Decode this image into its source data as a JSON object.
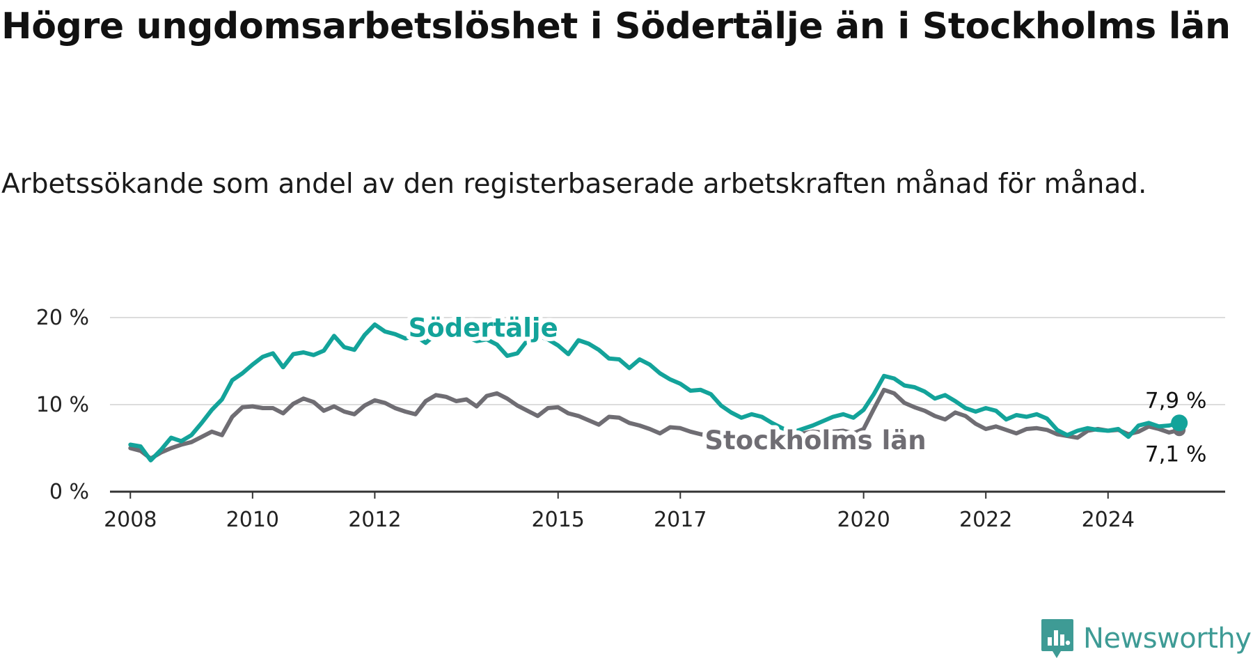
{
  "title": "Högre ungdomsarbetslöshet i Södertälje än i Stockholms län",
  "subtitle": "Arbetssökande som andel av den registerbaserade arbetskraften månad för månad.",
  "colors": {
    "sodertalje": "#13a39a",
    "stockholm": "#6f6d73",
    "grid": "#dcdcdc",
    "axis": "#333333",
    "brand": "#3e9b95"
  },
  "brand": {
    "name": "Newsworthy",
    "icon": "newsworthy-logo-icon"
  },
  "chart_data": {
    "type": "line",
    "title": "Högre ungdomsarbetslöshet i Södertälje än i Stockholms län",
    "xlabel": "",
    "ylabel": "",
    "x_ticks": [
      "2008",
      "2010",
      "2012",
      "2015",
      "2017",
      "2020",
      "2022",
      "2024"
    ],
    "y_ticks": [
      "0 %",
      "10 %",
      "20 %"
    ],
    "ylim": [
      0,
      20
    ],
    "xlim": [
      "2007-09",
      "2025-12"
    ],
    "grid": "horizontal",
    "legend": "inline labels",
    "series": [
      {
        "name": "Södertälje",
        "end_label": "7,9 %",
        "points": [
          [
            "2008-01",
            5.4
          ],
          [
            "2008-03",
            5.2
          ],
          [
            "2008-05",
            3.6
          ],
          [
            "2008-07",
            4.8
          ],
          [
            "2008-09",
            6.2
          ],
          [
            "2008-11",
            5.8
          ],
          [
            "2009-01",
            6.5
          ],
          [
            "2009-03",
            7.9
          ],
          [
            "2009-05",
            9.4
          ],
          [
            "2009-07",
            10.6
          ],
          [
            "2009-09",
            12.8
          ],
          [
            "2009-11",
            13.6
          ],
          [
            "2010-01",
            14.6
          ],
          [
            "2010-03",
            15.5
          ],
          [
            "2010-05",
            15.9
          ],
          [
            "2010-07",
            14.3
          ],
          [
            "2010-09",
            15.8
          ],
          [
            "2010-11",
            16.0
          ],
          [
            "2011-01",
            15.7
          ],
          [
            "2011-03",
            16.2
          ],
          [
            "2011-05",
            17.9
          ],
          [
            "2011-07",
            16.6
          ],
          [
            "2011-09",
            16.3
          ],
          [
            "2011-11",
            18.0
          ],
          [
            "2012-01",
            19.2
          ],
          [
            "2012-03",
            18.4
          ],
          [
            "2012-05",
            18.1
          ],
          [
            "2012-07",
            17.6
          ],
          [
            "2012-09",
            17.9
          ],
          [
            "2012-11",
            17.1
          ],
          [
            "2013-01",
            18.1
          ],
          [
            "2013-03",
            18.4
          ],
          [
            "2013-05",
            18.2
          ],
          [
            "2013-07",
            17.8
          ],
          [
            "2013-09",
            17.3
          ],
          [
            "2013-11",
            17.5
          ],
          [
            "2014-01",
            16.9
          ],
          [
            "2014-03",
            15.6
          ],
          [
            "2014-05",
            15.9
          ],
          [
            "2014-07",
            17.4
          ],
          [
            "2014-09",
            17.9
          ],
          [
            "2014-11",
            17.5
          ],
          [
            "2015-01",
            16.8
          ],
          [
            "2015-03",
            15.8
          ],
          [
            "2015-05",
            17.4
          ],
          [
            "2015-07",
            17.0
          ],
          [
            "2015-09",
            16.3
          ],
          [
            "2015-11",
            15.3
          ],
          [
            "2016-01",
            15.2
          ],
          [
            "2016-03",
            14.2
          ],
          [
            "2016-05",
            15.2
          ],
          [
            "2016-07",
            14.6
          ],
          [
            "2016-09",
            13.6
          ],
          [
            "2016-11",
            12.9
          ],
          [
            "2017-01",
            12.4
          ],
          [
            "2017-03",
            11.6
          ],
          [
            "2017-05",
            11.7
          ],
          [
            "2017-07",
            11.2
          ],
          [
            "2017-09",
            9.9
          ],
          [
            "2017-11",
            9.1
          ],
          [
            "2018-01",
            8.5
          ],
          [
            "2018-03",
            8.9
          ],
          [
            "2018-05",
            8.6
          ],
          [
            "2018-07",
            7.9
          ],
          [
            "2018-09",
            7.3
          ],
          [
            "2018-11",
            6.8
          ],
          [
            "2019-01",
            7.2
          ],
          [
            "2019-03",
            7.6
          ],
          [
            "2019-05",
            8.1
          ],
          [
            "2019-07",
            8.6
          ],
          [
            "2019-09",
            8.9
          ],
          [
            "2019-11",
            8.5
          ],
          [
            "2020-01",
            9.4
          ],
          [
            "2020-03",
            11.2
          ],
          [
            "2020-05",
            13.3
          ],
          [
            "2020-07",
            13.0
          ],
          [
            "2020-09",
            12.2
          ],
          [
            "2020-11",
            12.0
          ],
          [
            "2021-01",
            11.5
          ],
          [
            "2021-03",
            10.7
          ],
          [
            "2021-05",
            11.1
          ],
          [
            "2021-07",
            10.4
          ],
          [
            "2021-09",
            9.6
          ],
          [
            "2021-11",
            9.2
          ],
          [
            "2022-01",
            9.6
          ],
          [
            "2022-03",
            9.3
          ],
          [
            "2022-05",
            8.3
          ],
          [
            "2022-07",
            8.8
          ],
          [
            "2022-09",
            8.6
          ],
          [
            "2022-11",
            8.9
          ],
          [
            "2023-01",
            8.4
          ],
          [
            "2023-03",
            7.1
          ],
          [
            "2023-05",
            6.5
          ],
          [
            "2023-07",
            7.0
          ],
          [
            "2023-09",
            7.3
          ],
          [
            "2023-11",
            7.1
          ],
          [
            "2024-01",
            7.0
          ],
          [
            "2024-03",
            7.2
          ],
          [
            "2024-05",
            6.3
          ],
          [
            "2024-07",
            7.6
          ],
          [
            "2024-09",
            7.9
          ],
          [
            "2024-11",
            7.5
          ],
          [
            "2025-01",
            7.6
          ],
          [
            "2025-03",
            7.9
          ]
        ]
      },
      {
        "name": "Stockholms län",
        "end_label": "7,1 %",
        "points": [
          [
            "2008-01",
            5.0
          ],
          [
            "2008-03",
            4.7
          ],
          [
            "2008-05",
            3.8
          ],
          [
            "2008-07",
            4.5
          ],
          [
            "2008-09",
            5.0
          ],
          [
            "2008-11",
            5.4
          ],
          [
            "2009-01",
            5.7
          ],
          [
            "2009-03",
            6.3
          ],
          [
            "2009-05",
            6.9
          ],
          [
            "2009-07",
            6.5
          ],
          [
            "2009-09",
            8.6
          ],
          [
            "2009-11",
            9.7
          ],
          [
            "2010-01",
            9.8
          ],
          [
            "2010-03",
            9.6
          ],
          [
            "2010-05",
            9.6
          ],
          [
            "2010-07",
            9.0
          ],
          [
            "2010-09",
            10.1
          ],
          [
            "2010-11",
            10.7
          ],
          [
            "2011-01",
            10.3
          ],
          [
            "2011-03",
            9.3
          ],
          [
            "2011-05",
            9.8
          ],
          [
            "2011-07",
            9.2
          ],
          [
            "2011-09",
            8.9
          ],
          [
            "2011-11",
            9.9
          ],
          [
            "2012-01",
            10.5
          ],
          [
            "2012-03",
            10.2
          ],
          [
            "2012-05",
            9.6
          ],
          [
            "2012-07",
            9.2
          ],
          [
            "2012-09",
            8.9
          ],
          [
            "2012-11",
            10.4
          ],
          [
            "2013-01",
            11.1
          ],
          [
            "2013-03",
            10.9
          ],
          [
            "2013-05",
            10.4
          ],
          [
            "2013-07",
            10.6
          ],
          [
            "2013-09",
            9.8
          ],
          [
            "2013-11",
            11.0
          ],
          [
            "2014-01",
            11.3
          ],
          [
            "2014-03",
            10.7
          ],
          [
            "2014-05",
            9.9
          ],
          [
            "2014-07",
            9.3
          ],
          [
            "2014-09",
            8.7
          ],
          [
            "2014-11",
            9.6
          ],
          [
            "2015-01",
            9.7
          ],
          [
            "2015-03",
            9.0
          ],
          [
            "2015-05",
            8.7
          ],
          [
            "2015-07",
            8.2
          ],
          [
            "2015-09",
            7.7
          ],
          [
            "2015-11",
            8.6
          ],
          [
            "2016-01",
            8.5
          ],
          [
            "2016-03",
            7.9
          ],
          [
            "2016-05",
            7.6
          ],
          [
            "2016-07",
            7.2
          ],
          [
            "2016-09",
            6.7
          ],
          [
            "2016-11",
            7.4
          ],
          [
            "2017-01",
            7.3
          ],
          [
            "2017-03",
            6.9
          ],
          [
            "2017-05",
            6.6
          ],
          [
            "2017-07",
            6.4
          ],
          [
            "2017-09",
            6.1
          ],
          [
            "2017-11",
            6.4
          ],
          [
            "2018-01",
            6.2
          ],
          [
            "2018-03",
            5.9
          ],
          [
            "2018-05",
            6.1
          ],
          [
            "2018-07",
            6.4
          ],
          [
            "2018-09",
            6.5
          ],
          [
            "2018-11",
            6.6
          ],
          [
            "2019-01",
            6.7
          ],
          [
            "2019-03",
            6.9
          ],
          [
            "2019-05",
            6.8
          ],
          [
            "2019-07",
            6.9
          ],
          [
            "2019-09",
            7.0
          ],
          [
            "2019-11",
            6.7
          ],
          [
            "2020-01",
            7.2
          ],
          [
            "2020-03",
            9.5
          ],
          [
            "2020-05",
            11.7
          ],
          [
            "2020-07",
            11.3
          ],
          [
            "2020-09",
            10.2
          ],
          [
            "2020-11",
            9.7
          ],
          [
            "2021-01",
            9.3
          ],
          [
            "2021-03",
            8.7
          ],
          [
            "2021-05",
            8.3
          ],
          [
            "2021-07",
            9.1
          ],
          [
            "2021-09",
            8.7
          ],
          [
            "2021-11",
            7.8
          ],
          [
            "2022-01",
            7.2
          ],
          [
            "2022-03",
            7.5
          ],
          [
            "2022-05",
            7.1
          ],
          [
            "2022-07",
            6.7
          ],
          [
            "2022-09",
            7.2
          ],
          [
            "2022-11",
            7.3
          ],
          [
            "2023-01",
            7.1
          ],
          [
            "2023-03",
            6.6
          ],
          [
            "2023-05",
            6.4
          ],
          [
            "2023-07",
            6.2
          ],
          [
            "2023-09",
            7.0
          ],
          [
            "2023-11",
            7.2
          ],
          [
            "2024-01",
            7.0
          ],
          [
            "2024-03",
            7.1
          ],
          [
            "2024-05",
            6.6
          ],
          [
            "2024-07",
            6.9
          ],
          [
            "2024-09",
            7.5
          ],
          [
            "2024-11",
            7.2
          ],
          [
            "2025-01",
            6.8
          ],
          [
            "2025-03",
            7.1
          ]
        ]
      }
    ]
  }
}
